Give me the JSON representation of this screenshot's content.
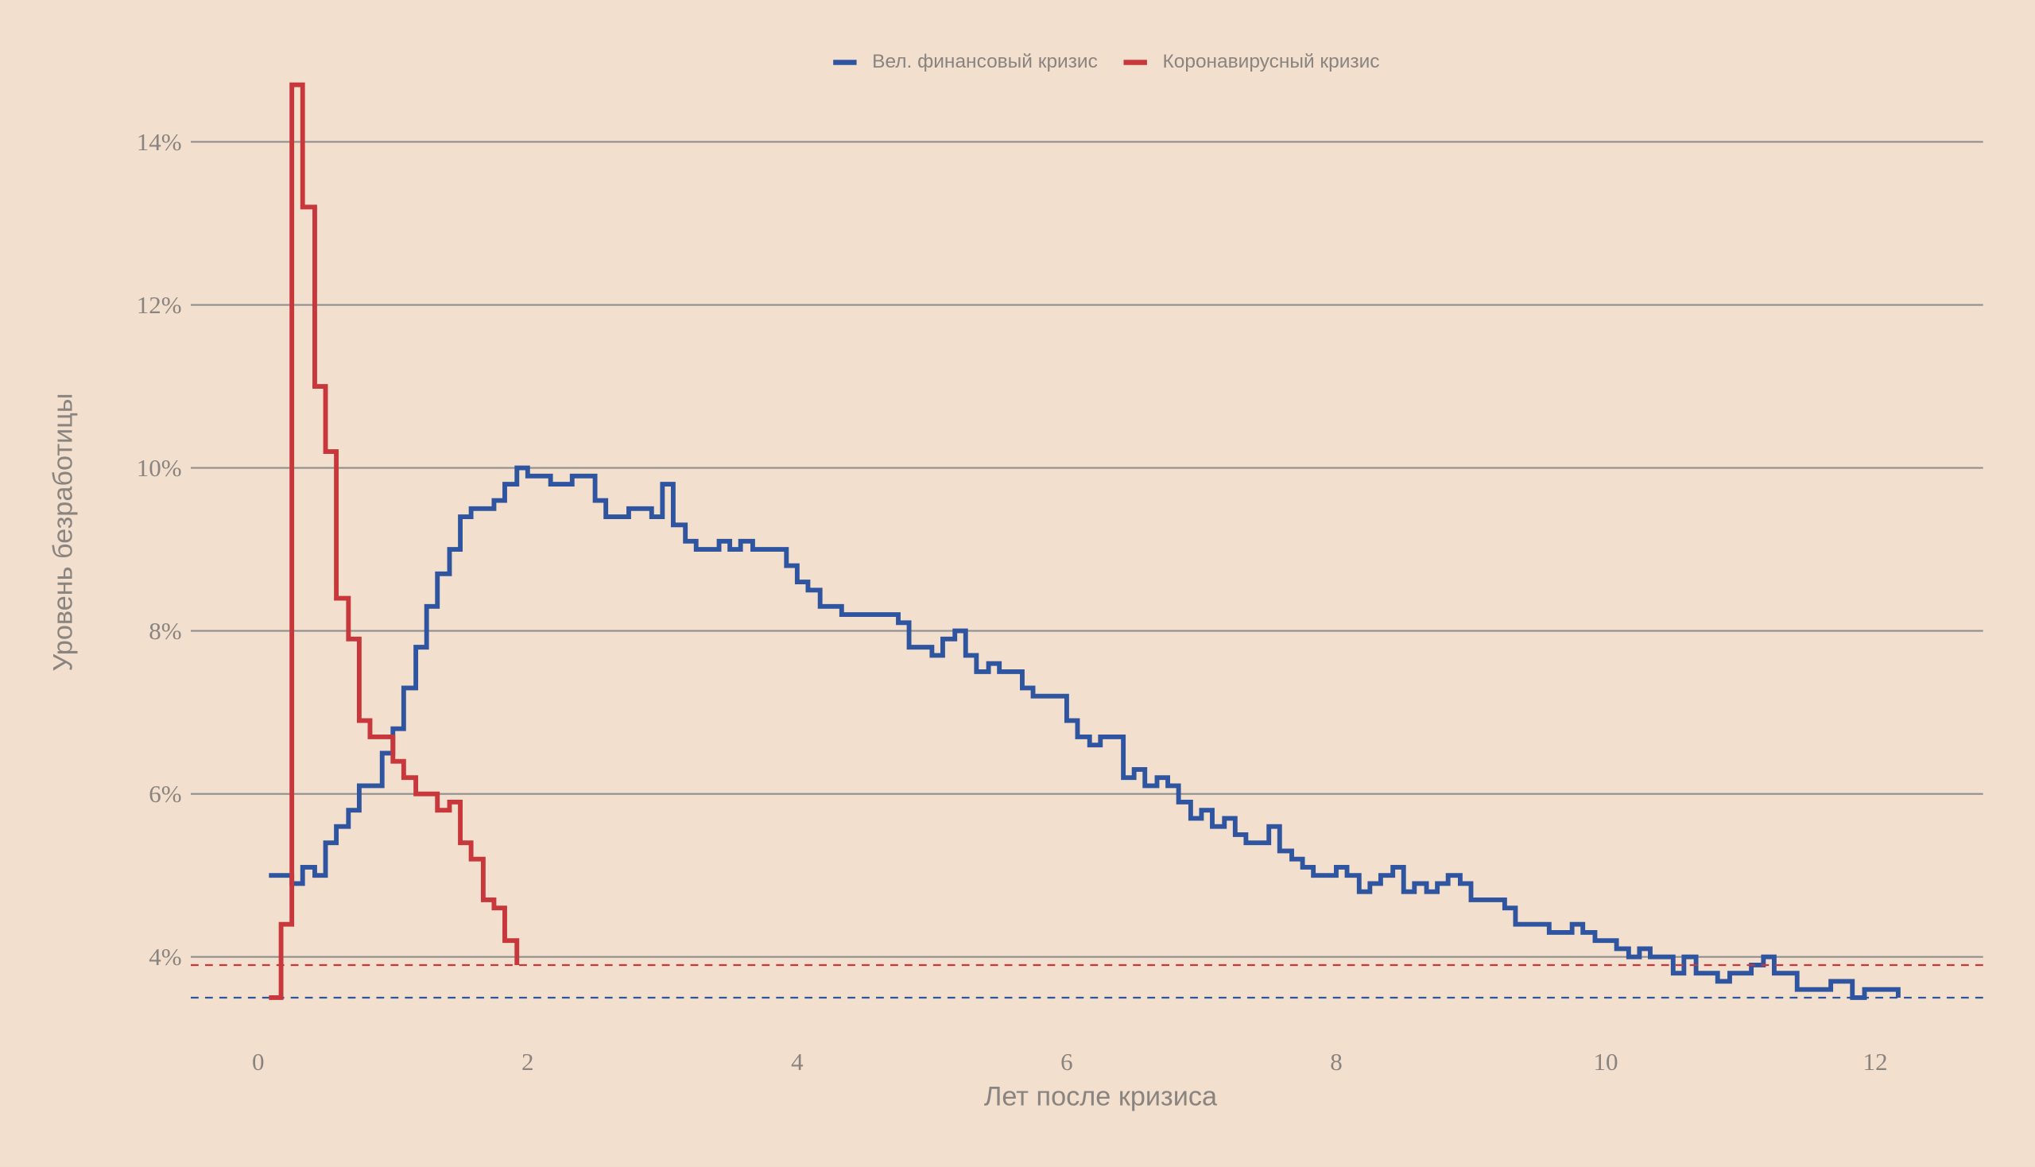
{
  "chart_data": {
    "type": "step",
    "xlabel": "Лет после кризиса",
    "ylabel": "Уровень безработицы",
    "xlim": [
      -0.5,
      12.8
    ],
    "ylim": [
      3,
      14.8
    ],
    "xticks": [
      0,
      2,
      4,
      6,
      8,
      10,
      12
    ],
    "yticks": [
      {
        "value": 4,
        "label": "4%"
      },
      {
        "value": 6,
        "label": "6%"
      },
      {
        "value": 8,
        "label": "8%"
      },
      {
        "value": 10,
        "label": "10%"
      },
      {
        "value": 12,
        "label": "12%"
      },
      {
        "value": 14,
        "label": "14%"
      }
    ],
    "grid": true,
    "legend": "top",
    "series": [
      {
        "name": "Вел. финансовый кризис",
        "color": "#2f55a0",
        "baseline": 3.5,
        "x": [
          0.08,
          0.17,
          0.25,
          0.33,
          0.42,
          0.5,
          0.58,
          0.67,
          0.75,
          0.83,
          0.92,
          1,
          1.08,
          1.17,
          1.25,
          1.33,
          1.42,
          1.5,
          1.58,
          1.67,
          1.75,
          1.83,
          1.92,
          2,
          2.08,
          2.17,
          2.25,
          2.33,
          2.42,
          2.5,
          2.58,
          2.67,
          2.75,
          2.83,
          2.92,
          3,
          3.08,
          3.17,
          3.25,
          3.33,
          3.42,
          3.5,
          3.58,
          3.67,
          3.75,
          3.83,
          3.92,
          4,
          4.08,
          4.17,
          4.25,
          4.33,
          4.42,
          4.5,
          4.58,
          4.67,
          4.75,
          4.83,
          4.92,
          5,
          5.08,
          5.17,
          5.25,
          5.33,
          5.42,
          5.5,
          5.58,
          5.67,
          5.75,
          5.83,
          5.92,
          6,
          6.08,
          6.17,
          6.25,
          6.33,
          6.42,
          6.5,
          6.58,
          6.67,
          6.75,
          6.83,
          6.92,
          7,
          7.08,
          7.17,
          7.25,
          7.33,
          7.42,
          7.5,
          7.58,
          7.67,
          7.75,
          7.83,
          7.92,
          8,
          8.08,
          8.17,
          8.25,
          8.33,
          8.42,
          8.5,
          8.58,
          8.67,
          8.75,
          8.83,
          8.92,
          9,
          9.08,
          9.17,
          9.25,
          9.33,
          9.42,
          9.5,
          9.58,
          9.67,
          9.75,
          9.83,
          9.92,
          10,
          10.08,
          10.17,
          10.25,
          10.33,
          10.42,
          10.5,
          10.58,
          10.67,
          10.75,
          10.83,
          10.92,
          11,
          11.08,
          11.17,
          11.25,
          11.33,
          11.42,
          11.5,
          11.58,
          11.67,
          11.75,
          11.83,
          11.92,
          12,
          12.08,
          12.17
        ],
        "values": [
          5.0,
          5.0,
          4.9,
          5.1,
          5.0,
          5.4,
          5.6,
          5.8,
          6.1,
          6.1,
          6.5,
          6.8,
          7.3,
          7.8,
          8.3,
          8.7,
          9.0,
          9.4,
          9.5,
          9.5,
          9.6,
          9.8,
          10.0,
          9.9,
          9.9,
          9.8,
          9.8,
          9.9,
          9.9,
          9.6,
          9.4,
          9.4,
          9.5,
          9.5,
          9.4,
          9.8,
          9.3,
          9.1,
          9.0,
          9.0,
          9.1,
          9.0,
          9.1,
          9.0,
          9.0,
          9.0,
          8.8,
          8.6,
          8.5,
          8.3,
          8.3,
          8.2,
          8.2,
          8.2,
          8.2,
          8.2,
          8.1,
          7.8,
          7.8,
          7.7,
          7.9,
          8.0,
          7.7,
          7.5,
          7.6,
          7.5,
          7.5,
          7.3,
          7.2,
          7.2,
          7.2,
          6.9,
          6.7,
          6.6,
          6.7,
          6.7,
          6.2,
          6.3,
          6.1,
          6.2,
          6.1,
          5.9,
          5.7,
          5.8,
          5.6,
          5.7,
          5.5,
          5.4,
          5.4,
          5.6,
          5.3,
          5.2,
          5.1,
          5.0,
          5.0,
          5.1,
          5.0,
          4.8,
          4.9,
          5.0,
          5.1,
          4.8,
          4.9,
          4.8,
          4.9,
          5.0,
          4.9,
          4.7,
          4.7,
          4.7,
          4.6,
          4.4,
          4.4,
          4.4,
          4.3,
          4.3,
          4.4,
          4.3,
          4.2,
          4.2,
          4.1,
          4.0,
          4.1,
          4.0,
          4.0,
          3.8,
          4.0,
          3.8,
          3.8,
          3.7,
          3.8,
          3.8,
          3.9,
          4.0,
          3.8,
          3.8,
          3.6,
          3.6,
          3.6,
          3.7,
          3.7,
          3.5,
          3.6,
          3.6,
          3.6,
          3.5
        ]
      },
      {
        "name": "Коронавирусный кризис",
        "color": "#c8373b",
        "baseline": 3.9,
        "x": [
          0.08,
          0.17,
          0.25,
          0.33,
          0.42,
          0.5,
          0.58,
          0.67,
          0.75,
          0.83,
          0.92,
          1,
          1.08,
          1.17,
          1.25,
          1.33,
          1.42,
          1.5,
          1.58,
          1.67,
          1.75,
          1.83,
          1.92
        ],
        "values": [
          3.5,
          4.4,
          14.7,
          13.2,
          11.0,
          10.2,
          8.4,
          7.9,
          6.9,
          6.7,
          6.7,
          6.4,
          6.2,
          6.0,
          6.0,
          5.8,
          5.9,
          5.4,
          5.2,
          4.7,
          4.6,
          4.2,
          3.9
        ]
      }
    ]
  }
}
